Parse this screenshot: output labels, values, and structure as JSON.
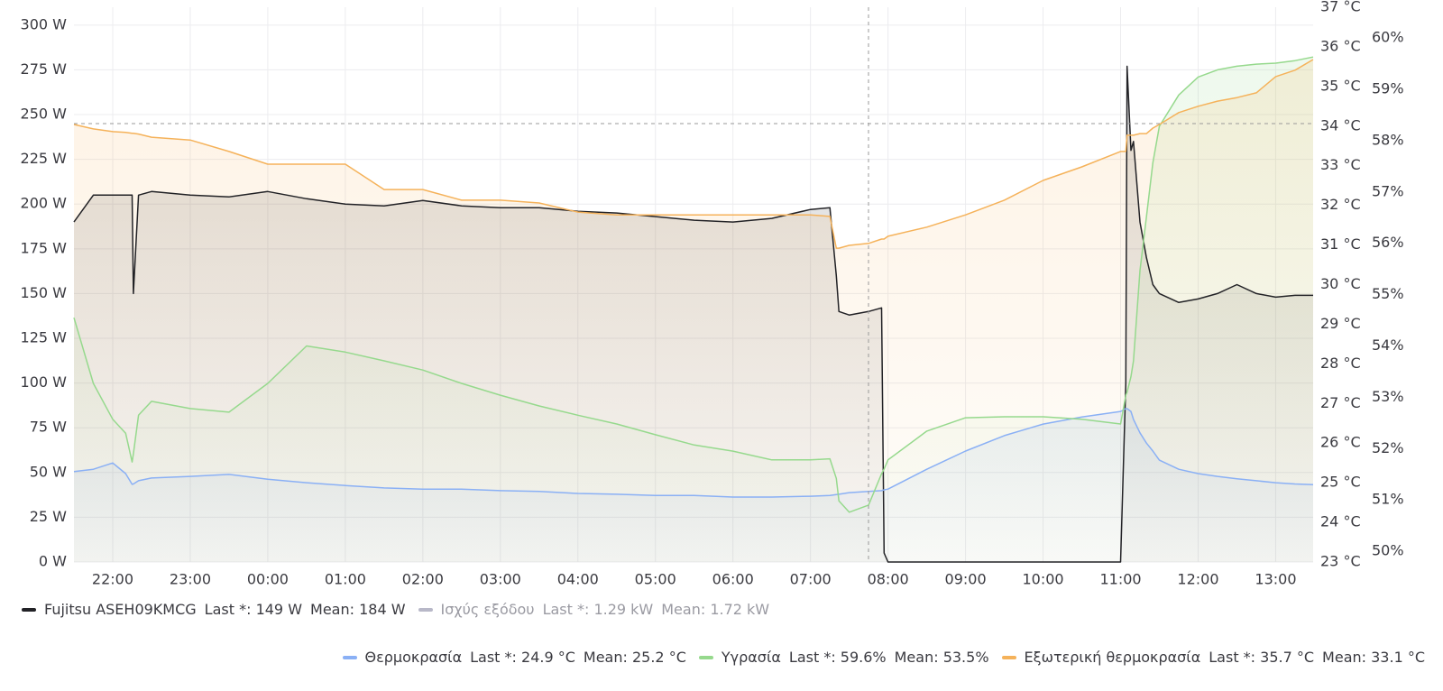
{
  "chart_data": {
    "type": "line",
    "x": [
      "21:30",
      "21:45",
      "22:00",
      "22:10",
      "22:15",
      "22:16",
      "22:20",
      "22:30",
      "23:00",
      "23:30",
      "00:00",
      "00:30",
      "01:00",
      "01:30",
      "02:00",
      "02:30",
      "03:00",
      "03:30",
      "04:00",
      "04:30",
      "05:00",
      "05:30",
      "06:00",
      "06:30",
      "07:00",
      "07:15",
      "07:20",
      "07:22",
      "07:30",
      "07:45",
      "07:55",
      "07:57",
      "08:00",
      "08:30",
      "09:00",
      "09:30",
      "10:00",
      "10:30",
      "11:00",
      "11:04",
      "11:05",
      "11:08",
      "11:10",
      "11:15",
      "11:20",
      "11:25",
      "11:30",
      "11:45",
      "12:00",
      "12:15",
      "12:30",
      "12:45",
      "13:00",
      "13:15",
      "13:29"
    ],
    "xlim": [
      "21:30",
      "13:29"
    ],
    "xticks": [
      "22:00",
      "23:00",
      "00:00",
      "01:00",
      "02:00",
      "03:00",
      "04:00",
      "05:00",
      "06:00",
      "07:00",
      "08:00",
      "09:00",
      "10:00",
      "11:00",
      "12:00",
      "13:00"
    ],
    "ylim": [
      0,
      310
    ],
    "yticks": [
      {
        "value": 0,
        "label": "0 W"
      },
      {
        "value": 25,
        "label": "25 W"
      },
      {
        "value": 50,
        "label": "50 W"
      },
      {
        "value": 75,
        "label": "75 W"
      },
      {
        "value": 100,
        "label": "100 W"
      },
      {
        "value": 125,
        "label": "125 W"
      },
      {
        "value": 150,
        "label": "150 W"
      },
      {
        "value": 175,
        "label": "175 W"
      },
      {
        "value": 200,
        "label": "200 W"
      },
      {
        "value": 225,
        "label": "225 W"
      },
      {
        "value": 250,
        "label": "250 W"
      },
      {
        "value": 275,
        "label": "275 W"
      },
      {
        "value": 300,
        "label": "300 W"
      }
    ],
    "y2lim": [
      23,
      37
    ],
    "y2ticks": [
      {
        "value": 23,
        "label": "23 °C"
      },
      {
        "value": 24,
        "label": "24 °C"
      },
      {
        "value": 25,
        "label": "25 °C"
      },
      {
        "value": 26,
        "label": "26 °C"
      },
      {
        "value": 27,
        "label": "27 °C"
      },
      {
        "value": 28,
        "label": "28 °C"
      },
      {
        "value": 29,
        "label": "29 °C"
      },
      {
        "value": 30,
        "label": "30 °C"
      },
      {
        "value": 31,
        "label": "31 °C"
      },
      {
        "value": 32,
        "label": "32 °C"
      },
      {
        "value": 33,
        "label": "33 °C"
      },
      {
        "value": 34,
        "label": "34 °C"
      },
      {
        "value": 35,
        "label": "35 °C"
      },
      {
        "value": 36,
        "label": "36 °C"
      },
      {
        "value": 37,
        "label": "37 °C"
      }
    ],
    "y3lim": [
      49.79,
      60.6
    ],
    "y3ticks": [
      {
        "value": 50,
        "label": "50%"
      },
      {
        "value": 51,
        "label": "51%"
      },
      {
        "value": 52,
        "label": "52%"
      },
      {
        "value": 53,
        "label": "53%"
      },
      {
        "value": 54,
        "label": "54%"
      },
      {
        "value": 55,
        "label": "55%"
      },
      {
        "value": 56,
        "label": "56%"
      },
      {
        "value": 57,
        "label": "57%"
      },
      {
        "value": 58,
        "label": "58%"
      },
      {
        "value": 59,
        "label": "59%"
      },
      {
        "value": 60,
        "label": "60%"
      }
    ],
    "grid": true,
    "series": [
      {
        "name": "Fujitsu ASEH09KMCG",
        "color": "#222226",
        "axis": "y",
        "last": "Last *: 149 W",
        "mean": "Mean: 184 W",
        "values": [
          190,
          205,
          205,
          205,
          205,
          150,
          205,
          207,
          205,
          204,
          207,
          203,
          200,
          199,
          202,
          199,
          198,
          198,
          196,
          195,
          193,
          191,
          190,
          192,
          197,
          198,
          160,
          140,
          138,
          140,
          142,
          5,
          0,
          0,
          0,
          0,
          0,
          0,
          0,
          100,
          277,
          230,
          235,
          190,
          170,
          155,
          150,
          145,
          147,
          150,
          155,
          150,
          148,
          149,
          149
        ]
      },
      {
        "name": "Ισχύς εξόδου",
        "color": "#b8b8c8",
        "axis": "y",
        "hidden": true,
        "last": "Last *: 1.29 kW",
        "mean": "Mean: 1.72 kW"
      },
      {
        "name": "Θερμοκρασία",
        "color": "#8ab0f5",
        "axis": "y2",
        "last": "Last *: 24.9 °C",
        "mean": "Mean: 25.2 °C",
        "values": [
          25.28,
          25.34,
          25.5,
          25.23,
          24.96,
          24.97,
          25.05,
          25.12,
          25.16,
          25.21,
          25.09,
          25.0,
          24.93,
          24.87,
          24.84,
          24.84,
          24.8,
          24.78,
          24.73,
          24.71,
          24.68,
          24.68,
          24.64,
          24.64,
          24.66,
          24.68,
          24.7,
          24.71,
          24.75,
          24.78,
          24.8,
          24.82,
          24.84,
          25.34,
          25.8,
          26.19,
          26.48,
          26.66,
          26.8,
          26.87,
          26.87,
          26.8,
          26.6,
          26.26,
          26.0,
          25.8,
          25.57,
          25.34,
          25.23,
          25.16,
          25.1,
          25.05,
          25.0,
          24.97,
          24.95
        ]
      },
      {
        "name": "Υγρασία",
        "color": "#96d98d",
        "axis": "y3",
        "last": "Last *: 59.6%",
        "mean": "Mean: 53.5%",
        "values": [
          54.55,
          53.27,
          52.57,
          52.3,
          51.74,
          51.9,
          52.65,
          52.92,
          52.78,
          52.71,
          53.27,
          54.0,
          53.88,
          53.71,
          53.53,
          53.27,
          53.04,
          52.83,
          52.65,
          52.48,
          52.27,
          52.07,
          51.95,
          51.78,
          51.78,
          51.8,
          51.42,
          50.98,
          50.76,
          50.9,
          51.51,
          51.6,
          51.78,
          52.34,
          52.6,
          52.62,
          52.62,
          52.57,
          52.48,
          53.04,
          53.1,
          53.4,
          53.71,
          55.47,
          56.52,
          57.57,
          58.28,
          58.89,
          59.24,
          59.38,
          59.45,
          59.49,
          59.51,
          59.56,
          59.63
        ]
      },
      {
        "name": "Εξωτερική θερμοκρασία",
        "color": "#f5b25a",
        "axis": "y2",
        "last": "Last *: 35.7 °C",
        "mean": "Mean: 33.1 °C",
        "values": [
          34.04,
          33.93,
          33.86,
          33.84,
          33.82,
          33.82,
          33.8,
          33.72,
          33.65,
          33.36,
          33.04,
          33.04,
          33.04,
          32.4,
          32.4,
          32.13,
          32.13,
          32.06,
          31.83,
          31.76,
          31.76,
          31.76,
          31.76,
          31.76,
          31.76,
          31.72,
          30.92,
          30.92,
          30.99,
          31.04,
          31.15,
          31.15,
          31.22,
          31.45,
          31.76,
          32.13,
          32.63,
          32.97,
          33.36,
          33.36,
          33.77,
          33.77,
          33.77,
          33.81,
          33.81,
          33.95,
          34.04,
          34.34,
          34.5,
          34.63,
          34.72,
          34.84,
          35.25,
          35.41,
          35.68
        ]
      }
    ]
  }
}
